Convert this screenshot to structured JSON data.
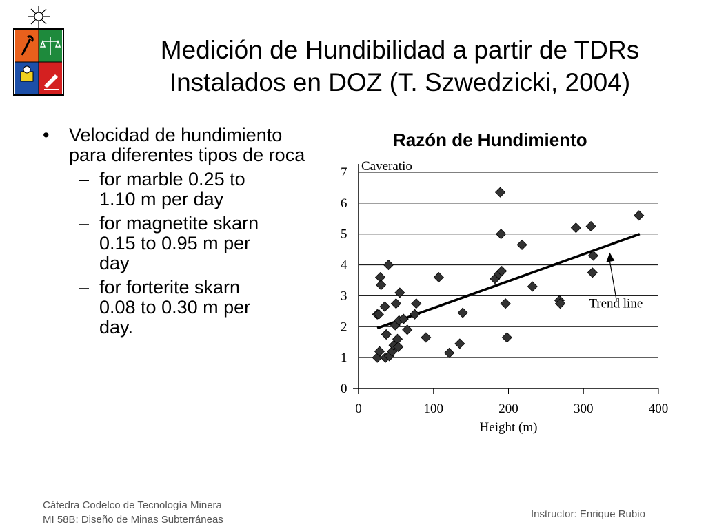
{
  "slide": {
    "title_line1": "Medición de Hundibilidad a partir de TDRs",
    "title_line2": "Instalados en DOZ (T. Szwedzicki, 2004)"
  },
  "logo": {
    "icon": "university-shield-logo",
    "colors": [
      "#e8601c",
      "#1e8a3c",
      "#1c4fa8",
      "#d42020"
    ]
  },
  "bullets": {
    "main": "Velocidad de hundimiento para diferentes tipos de roca",
    "items": [
      {
        "line1": "for marble 0.25 to",
        "line2": "1.10 m per day"
      },
      {
        "line1": "for magnetite skarn",
        "line2": "0.15 to 0.95 m per",
        "line3": "day"
      },
      {
        "line1": "for forterite skarn",
        "line2": "0.08 to 0.30 m per",
        "line3": "day."
      }
    ]
  },
  "chart_data": {
    "type": "scatter",
    "title": "Razón de Hundimiento",
    "ylabel": "Caveratio",
    "xlabel": "Height (m)",
    "xlim": [
      0,
      400
    ],
    "ylim": [
      0,
      7
    ],
    "xticks": [
      "0",
      "100",
      "200",
      "300",
      "400"
    ],
    "yticks": [
      "0",
      "1",
      "2",
      "3",
      "4",
      "5",
      "6",
      "7"
    ],
    "grid": "horizontal",
    "points": [
      [
        25,
        1.0
      ],
      [
        25,
        2.4
      ],
      [
        27,
        2.4
      ],
      [
        28,
        1.2
      ],
      [
        29,
        3.6
      ],
      [
        30,
        3.35
      ],
      [
        35,
        2.65
      ],
      [
        36,
        1.0
      ],
      [
        37,
        1.75
      ],
      [
        40,
        4.0
      ],
      [
        41,
        1.05
      ],
      [
        45,
        1.2
      ],
      [
        47,
        1.4
      ],
      [
        49,
        2.05
      ],
      [
        50,
        2.75
      ],
      [
        52,
        1.6
      ],
      [
        53,
        1.35
      ],
      [
        54,
        2.2
      ],
      [
        55,
        3.1
      ],
      [
        60,
        2.25
      ],
      [
        65,
        1.9
      ],
      [
        75,
        2.4
      ],
      [
        77,
        2.75
      ],
      [
        90,
        1.65
      ],
      [
        107,
        3.6
      ],
      [
        121,
        1.15
      ],
      [
        135,
        1.45
      ],
      [
        139,
        2.45
      ],
      [
        182,
        3.55
      ],
      [
        187,
        3.7
      ],
      [
        189,
        6.35
      ],
      [
        190,
        5.0
      ],
      [
        191,
        3.8
      ],
      [
        196,
        2.75
      ],
      [
        198,
        1.65
      ],
      [
        218,
        4.65
      ],
      [
        232,
        3.3
      ],
      [
        268,
        2.85
      ],
      [
        269,
        2.75
      ],
      [
        290,
        5.2
      ],
      [
        310,
        5.25
      ],
      [
        312,
        3.75
      ],
      [
        313,
        4.3
      ],
      [
        374,
        5.6
      ]
    ],
    "trend_line": {
      "x": [
        25,
        375
      ],
      "y": [
        1.95,
        5.0
      ]
    },
    "annotation": {
      "text": "Trend line",
      "arrow_to": [
        335,
        4.4
      ]
    }
  },
  "footer": {
    "line1": "Cátedra Codelco de Tecnología Minera",
    "line2": "MI 58B: Diseño de Minas Subterráneas",
    "instructor": "Instructor: Enrique Rubio"
  }
}
